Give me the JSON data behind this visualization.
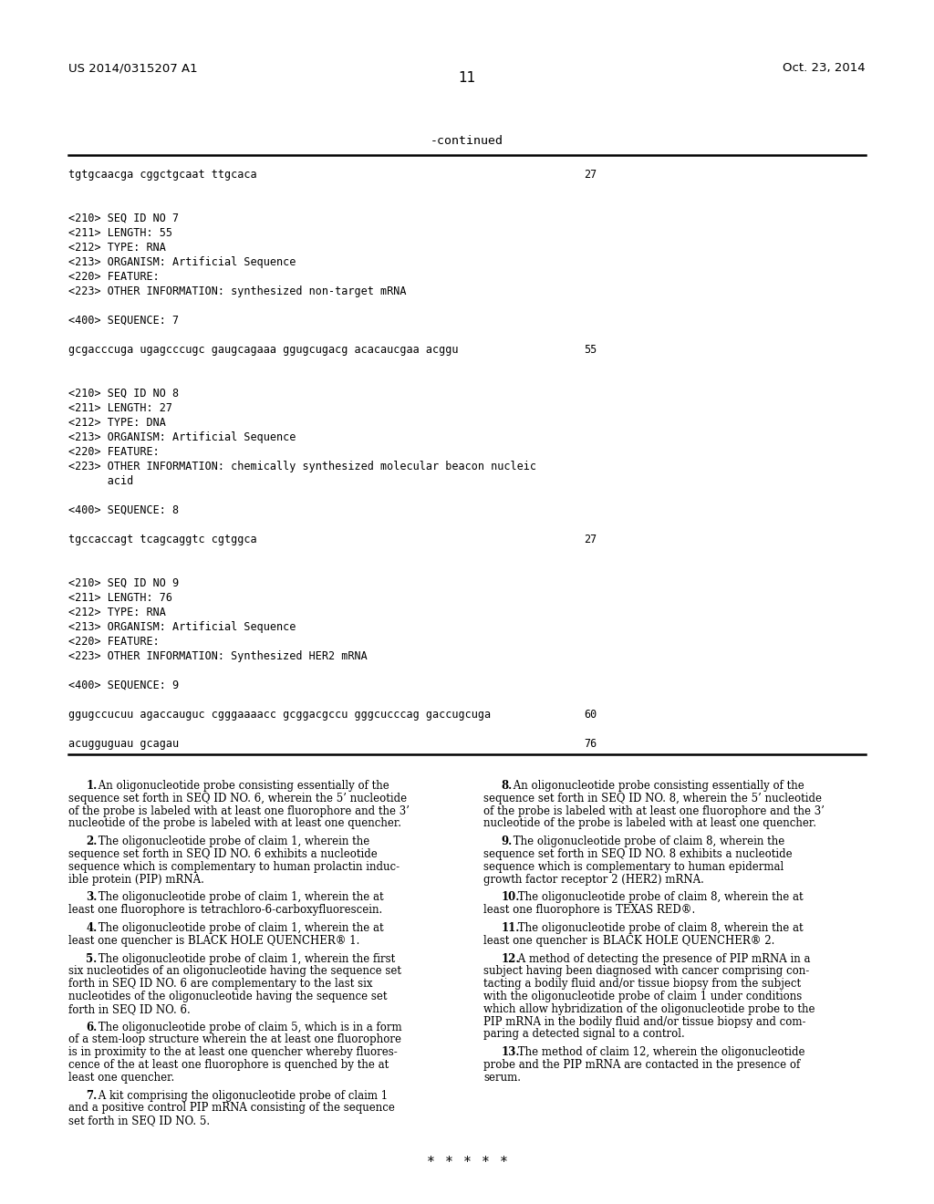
{
  "background_color": "#ffffff",
  "header_left": "US 2014/0315207 A1",
  "header_right": "Oct. 23, 2014",
  "page_number": "11",
  "continued_label": "-continued",
  "monospace_lines": [
    {
      "text": "tgtgcaacga cggctgcaat ttgcaca",
      "num": "27"
    },
    {
      "text": "",
      "num": ""
    },
    {
      "text": "",
      "num": ""
    },
    {
      "text": "<210> SEQ ID NO 7",
      "num": ""
    },
    {
      "text": "<211> LENGTH: 55",
      "num": ""
    },
    {
      "text": "<212> TYPE: RNA",
      "num": ""
    },
    {
      "text": "<213> ORGANISM: Artificial Sequence",
      "num": ""
    },
    {
      "text": "<220> FEATURE:",
      "num": ""
    },
    {
      "text": "<223> OTHER INFORMATION: synthesized non-target mRNA",
      "num": ""
    },
    {
      "text": "",
      "num": ""
    },
    {
      "text": "<400> SEQUENCE: 7",
      "num": ""
    },
    {
      "text": "",
      "num": ""
    },
    {
      "text": "gcgacccuga ugagcccugc gaugcagaaa ggugcugacg acacaucgaa acggu",
      "num": "55"
    },
    {
      "text": "",
      "num": ""
    },
    {
      "text": "",
      "num": ""
    },
    {
      "text": "<210> SEQ ID NO 8",
      "num": ""
    },
    {
      "text": "<211> LENGTH: 27",
      "num": ""
    },
    {
      "text": "<212> TYPE: DNA",
      "num": ""
    },
    {
      "text": "<213> ORGANISM: Artificial Sequence",
      "num": ""
    },
    {
      "text": "<220> FEATURE:",
      "num": ""
    },
    {
      "text": "<223> OTHER INFORMATION: chemically synthesized molecular beacon nucleic",
      "num": ""
    },
    {
      "text": "      acid",
      "num": ""
    },
    {
      "text": "",
      "num": ""
    },
    {
      "text": "<400> SEQUENCE: 8",
      "num": ""
    },
    {
      "text": "",
      "num": ""
    },
    {
      "text": "tgccaccagt tcagcaggtc cgtggca",
      "num": "27"
    },
    {
      "text": "",
      "num": ""
    },
    {
      "text": "",
      "num": ""
    },
    {
      "text": "<210> SEQ ID NO 9",
      "num": ""
    },
    {
      "text": "<211> LENGTH: 76",
      "num": ""
    },
    {
      "text": "<212> TYPE: RNA",
      "num": ""
    },
    {
      "text": "<213> ORGANISM: Artificial Sequence",
      "num": ""
    },
    {
      "text": "<220> FEATURE:",
      "num": ""
    },
    {
      "text": "<223> OTHER INFORMATION: Synthesized HER2 mRNA",
      "num": ""
    },
    {
      "text": "",
      "num": ""
    },
    {
      "text": "<400> SEQUENCE: 9",
      "num": ""
    },
    {
      "text": "",
      "num": ""
    },
    {
      "text": "ggugccucuu agaccauguc cgggaaaacc gcggacgccu gggcucccag gaccugcuga",
      "num": "60"
    },
    {
      "text": "",
      "num": ""
    },
    {
      "text": "acugguguau gcagau",
      "num": "76"
    }
  ],
  "claims_col0": [
    {
      "num": "1",
      "lines": [
        "    1. An oligonucleotide probe consisting essentially of the",
        "sequence set forth in SEQ ID NO. 6, wherein the 5’ nucleotide",
        "of the probe is labeled with at least one fluorophore and the 3’",
        "nucleotide of the probe is labeled with at least one quencher."
      ],
      "bold_num": true
    },
    {
      "num": "2",
      "lines": [
        "    2. The oligonucleotide probe of claim 1, wherein the",
        "sequence set forth in SEQ ID NO. 6 exhibits a nucleotide",
        "sequence which is complementary to human prolactin induc-",
        "ible protein (PIP) mRNA."
      ],
      "bold_num": true
    },
    {
      "num": "3",
      "lines": [
        "    3. The oligonucleotide probe of claim 1, wherein the at",
        "least one fluorophore is tetrachloro-6-carboxyfluorescein."
      ],
      "bold_num": false
    },
    {
      "num": "4",
      "lines": [
        "    4. The oligonucleotide probe of claim 1, wherein the at",
        "least one quencher is BLACK HOLE QUENCHER® 1."
      ],
      "bold_num": false
    },
    {
      "num": "5",
      "lines": [
        "    5. The oligonucleotide probe of claim 1, wherein the first",
        "six nucleotides of an oligonucleotide having the sequence set",
        "forth in SEQ ID NO. 6 are complementary to the last six",
        "nucleotides of the oligonucleotide having the sequence set",
        "forth in SEQ ID NO. 6."
      ],
      "bold_num": true
    },
    {
      "num": "6",
      "lines": [
        "    6. The oligonucleotide probe of claim 5, which is in a form",
        "of a stem-loop structure wherein the at least one fluorophore",
        "is in proximity to the at least one quencher whereby fluores-",
        "cence of the at least one fluorophore is quenched by the at",
        "least one quencher."
      ],
      "bold_num": false
    },
    {
      "num": "7",
      "lines": [
        "    7. A kit comprising the oligonucleotide probe of claim 1",
        "and a positive control PIP mRNA consisting of the sequence",
        "set forth in SEQ ID NO. 5."
      ],
      "bold_num": false
    }
  ],
  "claims_col1": [
    {
      "num": "8",
      "lines": [
        "    8. An oligonucleotide probe consisting essentially of the",
        "sequence set forth in SEQ ID NO. 8, wherein the 5’ nucleotide",
        "of the probe is labeled with at least one fluorophore and the 3’",
        "nucleotide of the probe is labeled with at least one quencher."
      ],
      "bold_num": true
    },
    {
      "num": "9",
      "lines": [
        "    9. The oligonucleotide probe of claim 8, wherein the",
        "sequence set forth in SEQ ID NO. 8 exhibits a nucleotide",
        "sequence which is complementary to human epidermal",
        "growth factor receptor 2 (HER2) mRNA."
      ],
      "bold_num": true
    },
    {
      "num": "10",
      "lines": [
        "    10. The oligonucleotide probe of claim 8, wherein the at",
        "least one fluorophore is TEXAS RED®."
      ],
      "bold_num": true
    },
    {
      "num": "11",
      "lines": [
        "    11. The oligonucleotide probe of claim 8, wherein the at",
        "least one quencher is BLACK HOLE QUENCHER® 2."
      ],
      "bold_num": true
    },
    {
      "num": "12",
      "lines": [
        "    12. A method of detecting the presence of PIP mRNA in a",
        "subject having been diagnosed with cancer comprising con-",
        "tacting a bodily fluid and/or tissue biopsy from the subject",
        "with the oligonucleotide probe of claim 1 under conditions",
        "which allow hybridization of the oligonucleotide probe to the",
        "PIP mRNA in the bodily fluid and/or tissue biopsy and com-",
        "paring a detected signal to a control."
      ],
      "bold_num": true
    },
    {
      "num": "13",
      "lines": [
        "    13. The method of claim 12, wherein the oligonucleotide",
        "probe and the PIP mRNA are contacted in the presence of",
        "serum."
      ],
      "bold_num": true
    }
  ],
  "asterisks": "*   *   *   *   *"
}
